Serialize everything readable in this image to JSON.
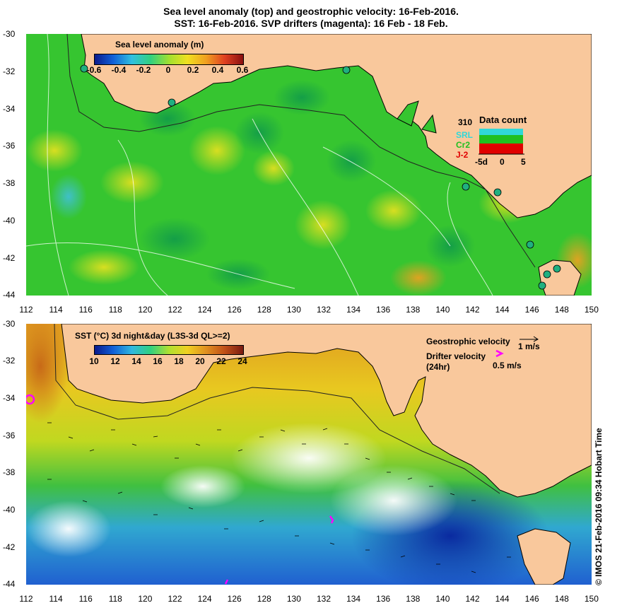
{
  "titles": {
    "line1": "Sea level anomaly (top) and geostrophic velocity: 16-Feb-2016.",
    "line2": "SST: 16-Feb-2016. SVP drifters (magenta): 16 Feb - 18 Feb."
  },
  "axes": {
    "y_labels": [
      "-30",
      "-32",
      "-34",
      "-36",
      "-38",
      "-40",
      "-42",
      "-44"
    ],
    "x_labels": [
      "112",
      "114",
      "116",
      "118",
      "120",
      "122",
      "124",
      "126",
      "128",
      "130",
      "132",
      "134",
      "136",
      "138",
      "140",
      "142",
      "144",
      "146",
      "148",
      "150"
    ]
  },
  "top_panel": {
    "colorbar_title": "Sea level anomaly (m)",
    "colorbar_ticks": [
      "-0.6",
      "-0.4",
      "-0.2",
      "0",
      "0.2",
      "0.4",
      "0.6"
    ],
    "data_count": {
      "title": "Data count",
      "max_label": "310",
      "satellites": [
        "SRL",
        "Cr2",
        "J-2"
      ],
      "satellite_colors": [
        "#30d8d8",
        "#20c020",
        "#e00000"
      ],
      "x_ticks": [
        "-5d",
        "0",
        "5"
      ]
    }
  },
  "bottom_panel": {
    "colorbar_title": "SST (°C) 3d night&day (L3S-3d QL>=2)",
    "colorbar_ticks": [
      "10",
      "12",
      "14",
      "16",
      "18",
      "20",
      "22",
      "24"
    ],
    "geo_velocity_label": "Geostrophic velocity",
    "geo_velocity_scale": "1 m/s",
    "drifter_label": "Drifter velocity",
    "drifter_sublabel": "(24hr)",
    "drifter_scale": "0.5 m/s",
    "drifter_color": "#ff00ff"
  },
  "colors": {
    "land": "#f9c89c",
    "sla_ocean": "#2fc82f",
    "sst_warm": "#e6a020",
    "sst_cool": "#1040c8"
  },
  "credit": "© IMOS 21-Feb-2016 09:34 Hobart Time"
}
